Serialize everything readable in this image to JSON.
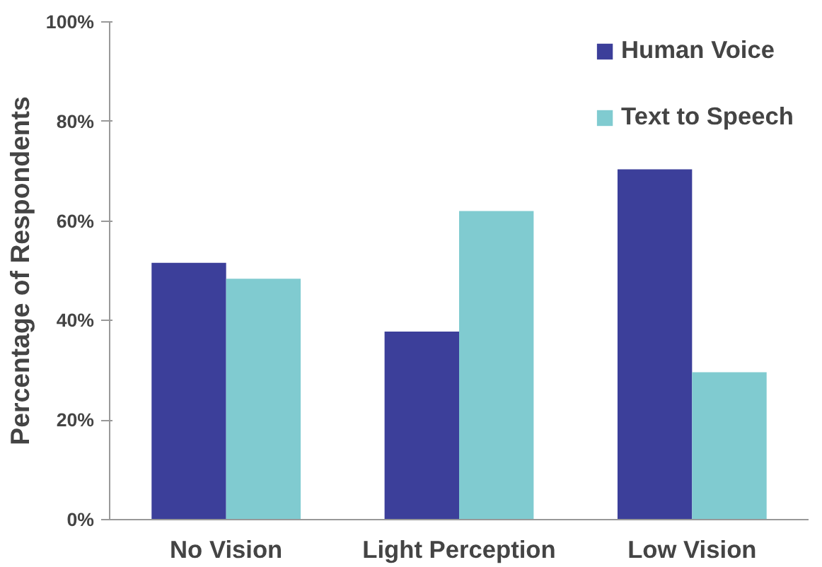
{
  "chart_data": {
    "type": "bar",
    "ylabel": "Percentage of Respondents",
    "categories": [
      "No Vision",
      "Light Perception",
      "Low Vision"
    ],
    "series": [
      {
        "name": "Human Voice",
        "color": "#3c3f9a",
        "values": [
          51.6,
          37.8,
          70.4
        ]
      },
      {
        "name": "Text to Speech",
        "color": "#80cbd0",
        "values": [
          48.4,
          62.0,
          29.6
        ]
      }
    ],
    "ylim": [
      0,
      100
    ],
    "yticks": [
      {
        "value": 0,
        "label": "0%"
      },
      {
        "value": 20,
        "label": "20%"
      },
      {
        "value": 40,
        "label": "40%"
      },
      {
        "value": 60,
        "label": "60%"
      },
      {
        "value": 80,
        "label": "80%"
      },
      {
        "value": 100,
        "label": "100%"
      }
    ],
    "grid": false,
    "legend": "top right"
  }
}
